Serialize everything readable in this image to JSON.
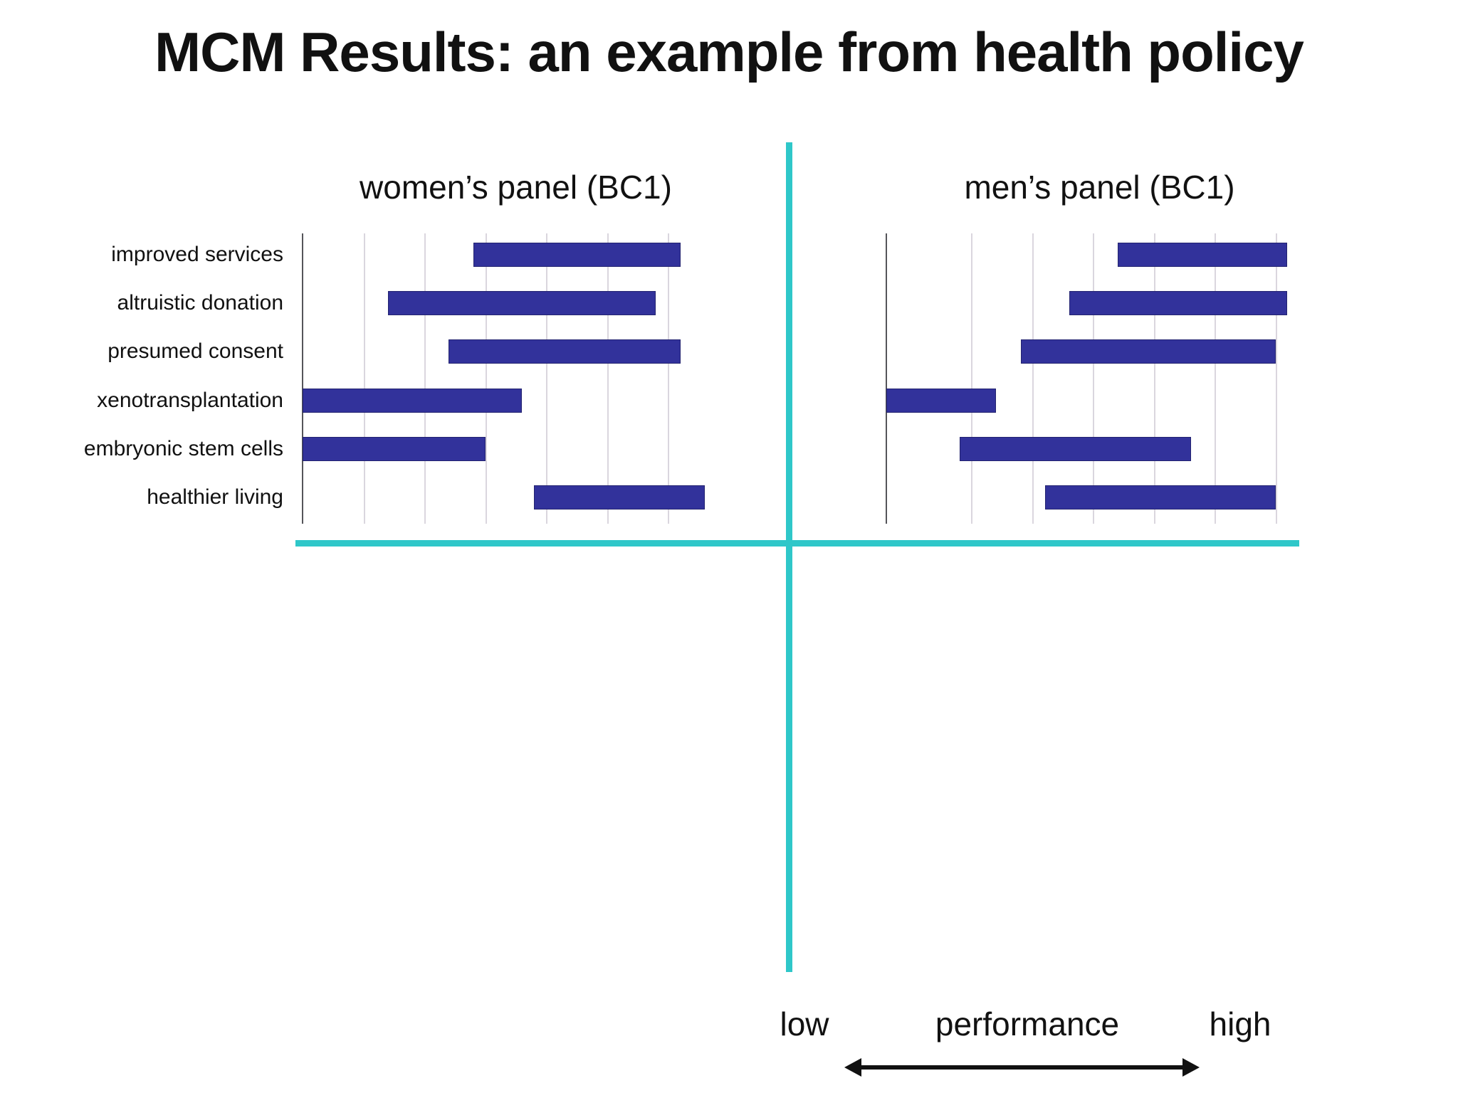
{
  "slide": {
    "title": "MCM Results: an example from health policy"
  },
  "colors": {
    "bar": "#32329B",
    "bar_border": "#232370",
    "accent": "#2FC7C9",
    "gridline": "#DAD6DE",
    "axis_line": "#55555A",
    "text": "#111111",
    "background": "#FFFFFF"
  },
  "categories": [
    "improved services",
    "altruistic donation",
    "presumed consent",
    "xenotransplantation",
    "embryonic stem cells",
    "healthier living"
  ],
  "panels": [
    {
      "title": "women’s panel (BC1)",
      "gridlines": [
        1,
        2,
        3,
        4,
        5,
        6
      ]
    },
    {
      "title": "men’s panel (BC1)",
      "gridlines": [
        1.39,
        2.39,
        3.39,
        4.39,
        5.39,
        6.39
      ]
    }
  ],
  "footer": {
    "low_label": "low",
    "axis_label": "performance",
    "high_label": "high"
  },
  "chart_data": {
    "type": "bar",
    "subtype": "horizontal-range",
    "title": "MCM Results: an example from health policy",
    "categories": [
      "improved services",
      "altruistic donation",
      "presumed consent",
      "xenotransplantation",
      "embryonic stem cells",
      "healthier living"
    ],
    "series": [
      {
        "name": "women’s panel (BC1)",
        "ranges": [
          [
            2.8,
            6.2
          ],
          [
            1.4,
            5.8
          ],
          [
            2.4,
            6.2
          ],
          [
            0,
            3.6
          ],
          [
            0,
            3.0
          ],
          [
            3.8,
            6.6
          ]
        ]
      },
      {
        "name": "men’s panel (BC1)",
        "ranges": [
          [
            3.8,
            6.58
          ],
          [
            3.0,
            6.58
          ],
          [
            2.21,
            6.39
          ],
          [
            0,
            1.8
          ],
          [
            1.2,
            5.0
          ],
          [
            2.61,
            6.39
          ]
        ]
      }
    ],
    "xlabel": "performance",
    "x_axis_annotation": "low ↔ high",
    "xlim": [
      0,
      7
    ],
    "grid": true,
    "legend_position": "panel titles above each chart"
  }
}
